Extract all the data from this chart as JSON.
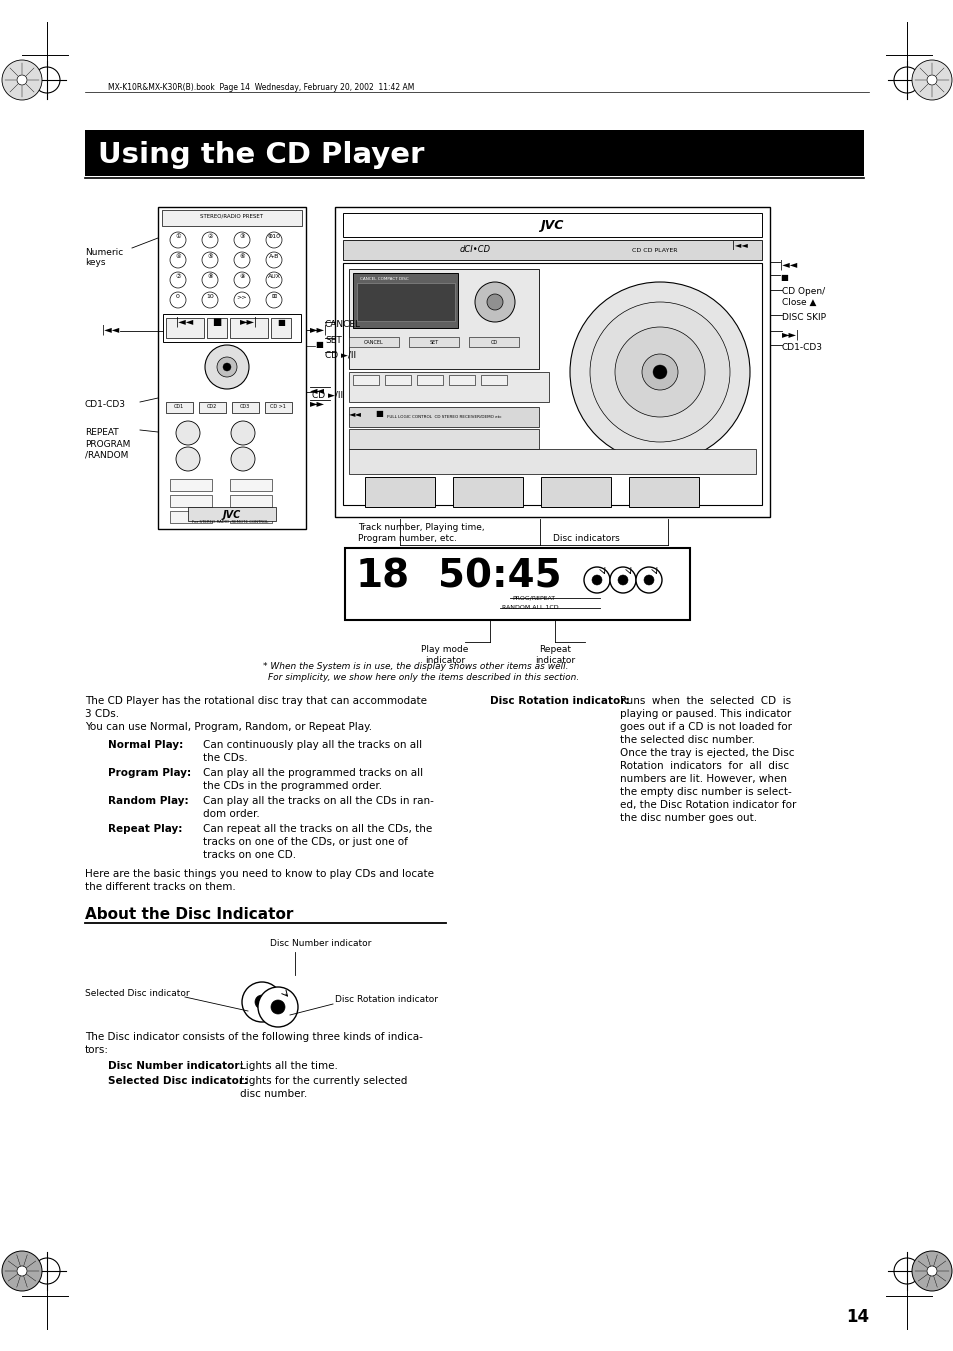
{
  "page_bg": "#ffffff",
  "title_text": "Using the CD Player",
  "title_bg": "#000000",
  "title_color": "#ffffff",
  "title_fontsize": 22,
  "header_text": "MX-K10R&MX-K30R(B).book  Page 14  Wednesday, February 20, 2002  11:42 AM",
  "page_number": "14",
  "section2_title": "About the Disc Indicator",
  "body_fontsize": 7.5,
  "note_text1": "* When the System is in use, the display shows other items as well.",
  "note_text2": "For simplicity, we show here only the items described in this section."
}
